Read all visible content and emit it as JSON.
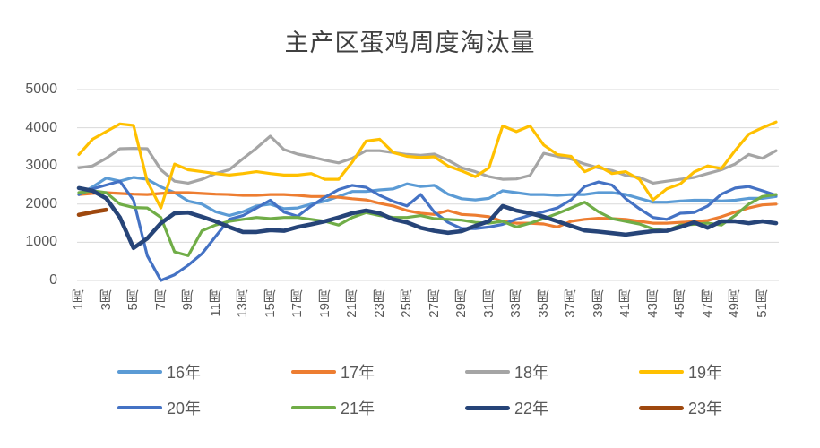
{
  "chart_data": {
    "type": "line",
    "title": "主产区蛋鸡周度淘汰量",
    "xlabel": "",
    "ylabel": "",
    "ylim": [
      0,
      5000
    ],
    "yticks": [
      0,
      1000,
      2000,
      3000,
      4000,
      5000
    ],
    "x": [
      1,
      2,
      3,
      4,
      5,
      6,
      7,
      8,
      9,
      10,
      11,
      12,
      13,
      14,
      15,
      16,
      17,
      18,
      19,
      20,
      21,
      22,
      23,
      24,
      25,
      26,
      27,
      28,
      29,
      30,
      31,
      32,
      33,
      34,
      35,
      36,
      37,
      38,
      39,
      40,
      41,
      42,
      43,
      44,
      45,
      46,
      47,
      48,
      49,
      50,
      51,
      52
    ],
    "xticklabels": [
      "1周",
      "3周",
      "5周",
      "7周",
      "9周",
      "11周",
      "13周",
      "15周",
      "17周",
      "19周",
      "21周",
      "23周",
      "25周",
      "27周",
      "29周",
      "31周",
      "33周",
      "35周",
      "37周",
      "39周",
      "41周",
      "43周",
      "45周",
      "47周",
      "49周",
      "51周"
    ],
    "grid": true,
    "gridline_color": "#d9d9d9",
    "legend_position": "bottom",
    "series": [
      {
        "name": "16年",
        "color": "#5B9BD5",
        "width": 3.2,
        "values": [
          2250,
          2450,
          2680,
          2600,
          2700,
          2650,
          2450,
          2300,
          2080,
          2000,
          1800,
          1700,
          1800,
          1950,
          2000,
          1880,
          1900,
          2000,
          2080,
          2200,
          2330,
          2330,
          2370,
          2400,
          2530,
          2460,
          2490,
          2260,
          2140,
          2110,
          2150,
          2350,
          2300,
          2250,
          2250,
          2230,
          2250,
          2250,
          2300,
          2300,
          2250,
          2150,
          2050,
          2050,
          2080,
          2100,
          2100,
          2080,
          2100,
          2150,
          2150,
          2200
        ]
      },
      {
        "name": "17年",
        "color": "#ED7D31",
        "width": 3.2,
        "values": [
          2250,
          2280,
          2300,
          2280,
          2260,
          2250,
          2280,
          2300,
          2300,
          2280,
          2260,
          2250,
          2230,
          2230,
          2250,
          2250,
          2230,
          2200,
          2200,
          2180,
          2140,
          2110,
          2020,
          1950,
          1830,
          1760,
          1730,
          1830,
          1730,
          1710,
          1670,
          1550,
          1500,
          1500,
          1480,
          1400,
          1550,
          1600,
          1630,
          1620,
          1600,
          1550,
          1500,
          1500,
          1520,
          1540,
          1570,
          1670,
          1790,
          1900,
          1980,
          2000
        ]
      },
      {
        "name": "18年",
        "color": "#A5A5A5",
        "width": 3.2,
        "values": [
          2950,
          3000,
          3200,
          3450,
          3460,
          3450,
          2900,
          2600,
          2550,
          2650,
          2800,
          2900,
          3190,
          3470,
          3780,
          3430,
          3310,
          3240,
          3150,
          3080,
          3200,
          3400,
          3400,
          3350,
          3300,
          3280,
          3310,
          3150,
          2950,
          2850,
          2720,
          2650,
          2660,
          2750,
          3330,
          3250,
          3180,
          3050,
          2950,
          2880,
          2750,
          2700,
          2550,
          2600,
          2650,
          2700,
          2800,
          2900,
          3050,
          3300,
          3200,
          3400
        ]
      },
      {
        "name": "19年",
        "color": "#FFC000",
        "width": 3.2,
        "values": [
          3300,
          3700,
          3900,
          4100,
          4060,
          2600,
          1900,
          3050,
          2900,
          2850,
          2800,
          2760,
          2800,
          2850,
          2800,
          2760,
          2760,
          2800,
          2650,
          2650,
          3100,
          3650,
          3700,
          3350,
          3250,
          3220,
          3240,
          3000,
          2870,
          2720,
          2950,
          4050,
          3900,
          4050,
          3550,
          3300,
          3250,
          2850,
          3000,
          2800,
          2850,
          2650,
          2110,
          2400,
          2530,
          2840,
          3000,
          2930,
          3400,
          3830,
          4000,
          4150
        ]
      },
      {
        "name": "20年",
        "color": "#4472C4",
        "width": 3.2,
        "values": [
          2250,
          2400,
          2500,
          2600,
          2100,
          650,
          0,
          150,
          400,
          700,
          1150,
          1600,
          1700,
          1900,
          2100,
          1790,
          1680,
          1950,
          2180,
          2380,
          2490,
          2440,
          2230,
          2070,
          1950,
          2250,
          1790,
          1520,
          1360,
          1360,
          1400,
          1470,
          1600,
          1710,
          1800,
          1900,
          2110,
          2460,
          2580,
          2500,
          2140,
          1880,
          1650,
          1600,
          1760,
          1780,
          1950,
          2260,
          2420,
          2460,
          2350,
          2230
        ]
      },
      {
        "name": "21年",
        "color": "#70AD47",
        "width": 3.2,
        "values": [
          2300,
          2350,
          2300,
          2000,
          1910,
          1900,
          1650,
          750,
          650,
          1300,
          1450,
          1550,
          1600,
          1650,
          1620,
          1650,
          1650,
          1600,
          1550,
          1450,
          1650,
          1780,
          1700,
          1650,
          1650,
          1700,
          1620,
          1600,
          1580,
          1520,
          1500,
          1550,
          1400,
          1500,
          1620,
          1750,
          1900,
          2050,
          1800,
          1620,
          1550,
          1480,
          1350,
          1300,
          1450,
          1470,
          1500,
          1450,
          1700,
          2000,
          2200,
          2250
        ]
      },
      {
        "name": "22年",
        "color": "#264478",
        "width": 4.6,
        "values": [
          2420,
          2350,
          2150,
          1650,
          850,
          1100,
          1500,
          1760,
          1780,
          1670,
          1550,
          1400,
          1270,
          1270,
          1320,
          1300,
          1400,
          1470,
          1550,
          1650,
          1760,
          1830,
          1760,
          1600,
          1520,
          1380,
          1300,
          1250,
          1290,
          1430,
          1550,
          1950,
          1830,
          1760,
          1670,
          1550,
          1430,
          1310,
          1280,
          1240,
          1200,
          1250,
          1290,
          1300,
          1400,
          1520,
          1380,
          1550,
          1550,
          1500,
          1550,
          1500
        ]
      },
      {
        "name": "23年",
        "color": "#9E480E",
        "width": 4.6,
        "values": [
          1720,
          1790,
          1850,
          null,
          null,
          null,
          null,
          null,
          null,
          null,
          null,
          null,
          null,
          null,
          null,
          null,
          null,
          null,
          null,
          null,
          null,
          null,
          null,
          null,
          null,
          null,
          null,
          null,
          null,
          null,
          null,
          null,
          null,
          null,
          null,
          null,
          null,
          null,
          null,
          null,
          null,
          null,
          null,
          null,
          null,
          null,
          null,
          null,
          null,
          null,
          null,
          null
        ]
      }
    ]
  }
}
